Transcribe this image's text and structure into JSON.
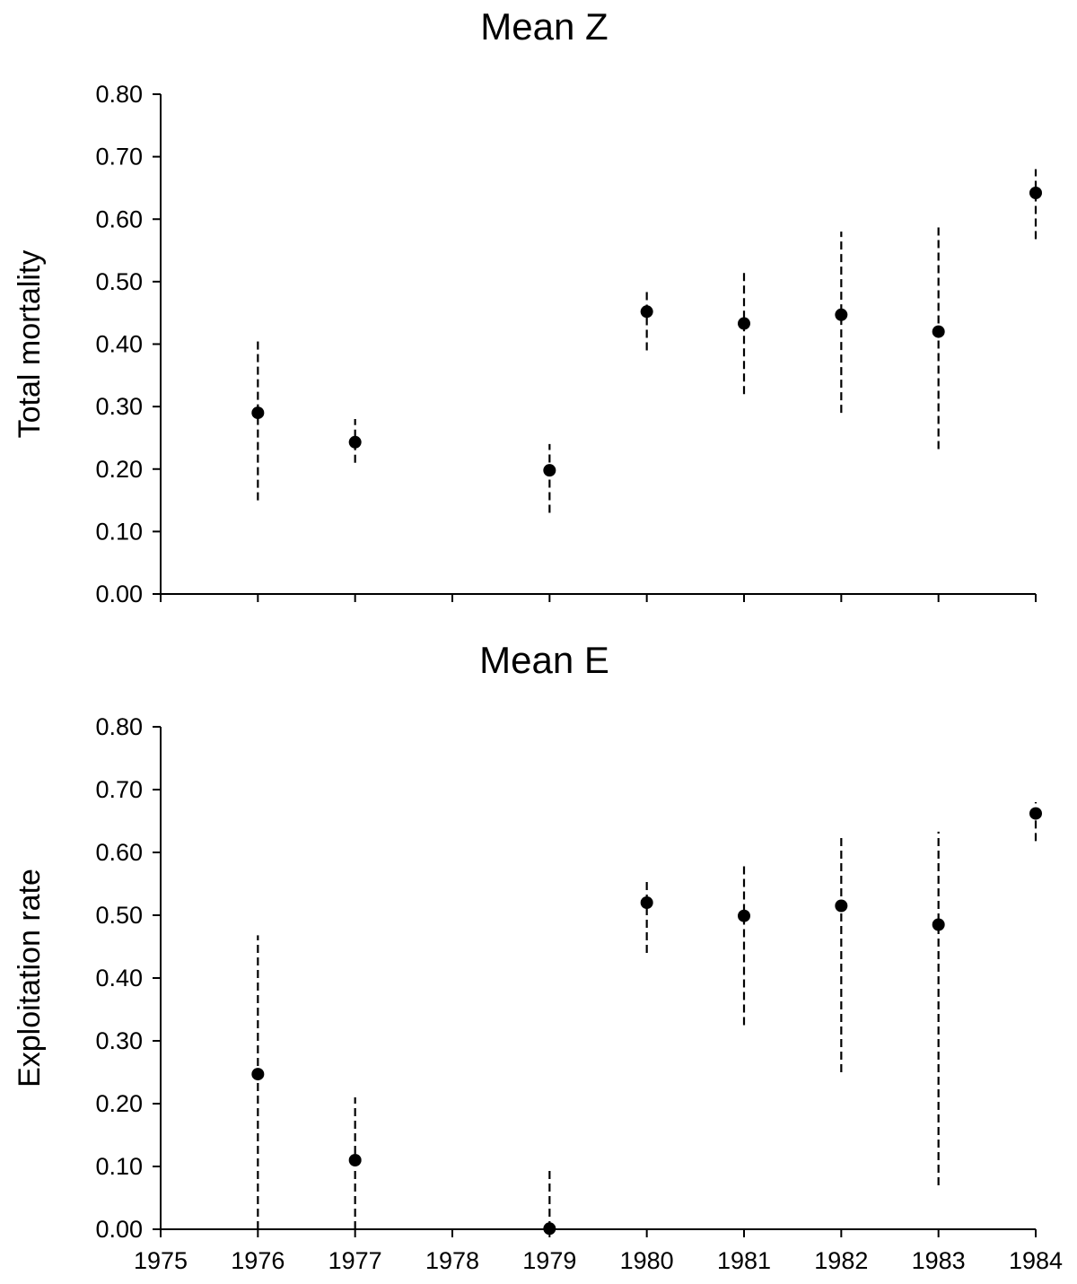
{
  "chart_data": [
    {
      "type": "scatter",
      "title": "Mean Z",
      "xlabel": "",
      "ylabel": "Total mortality",
      "ylim": [
        0,
        0.8
      ],
      "yticks": [
        "0.00",
        "0.10",
        "0.20",
        "0.30",
        "0.40",
        "0.50",
        "0.60",
        "0.70",
        "0.80"
      ],
      "xlim": [
        1975,
        1984
      ],
      "xticks": [
        "1975",
        "1976",
        "1977",
        "1978",
        "1979",
        "1980",
        "1981",
        "1982",
        "1983",
        "1984"
      ],
      "show_x_tick_labels": false,
      "grid": false,
      "points": [
        {
          "x": 1976,
          "y": 0.29,
          "lo": 0.15,
          "hi": 0.41
        },
        {
          "x": 1977,
          "y": 0.243,
          "lo": 0.21,
          "hi": 0.28
        },
        {
          "x": 1979,
          "y": 0.198,
          "lo": 0.13,
          "hi": 0.24
        },
        {
          "x": 1980,
          "y": 0.452,
          "lo": 0.39,
          "hi": 0.49
        },
        {
          "x": 1981,
          "y": 0.433,
          "lo": 0.32,
          "hi": 0.515
        },
        {
          "x": 1982,
          "y": 0.447,
          "lo": 0.29,
          "hi": 0.58
        },
        {
          "x": 1983,
          "y": 0.42,
          "lo": 0.232,
          "hi": 0.592
        },
        {
          "x": 1984,
          "y": 0.642,
          "lo": 0.568,
          "hi": 0.68
        }
      ]
    },
    {
      "type": "scatter",
      "title": "Mean E",
      "xlabel": "",
      "ylabel": "Exploitation rate",
      "ylim": [
        0,
        0.8
      ],
      "yticks": [
        "0.00",
        "0.10",
        "0.20",
        "0.30",
        "0.40",
        "0.50",
        "0.60",
        "0.70",
        "0.80"
      ],
      "xlim": [
        1975,
        1984
      ],
      "xticks": [
        "1975",
        "1976",
        "1977",
        "1978",
        "1979",
        "1980",
        "1981",
        "1982",
        "1983",
        "1984"
      ],
      "show_x_tick_labels": true,
      "grid": false,
      "points": [
        {
          "x": 1976,
          "y": 0.247,
          "lo": 0.0,
          "hi": 0.468
        },
        {
          "x": 1977,
          "y": 0.11,
          "lo": 0.0,
          "hi": 0.21
        },
        {
          "x": 1979,
          "y": 0.001,
          "lo": 0.0,
          "hi": 0.1
        },
        {
          "x": 1980,
          "y": 0.52,
          "lo": 0.44,
          "hi": 0.555
        },
        {
          "x": 1981,
          "y": 0.499,
          "lo": 0.325,
          "hi": 0.578
        },
        {
          "x": 1982,
          "y": 0.515,
          "lo": 0.25,
          "hi": 0.625
        },
        {
          "x": 1983,
          "y": 0.485,
          "lo": 0.07,
          "hi": 0.633
        },
        {
          "x": 1984,
          "y": 0.662,
          "lo": 0.618,
          "hi": 0.68
        }
      ]
    }
  ]
}
